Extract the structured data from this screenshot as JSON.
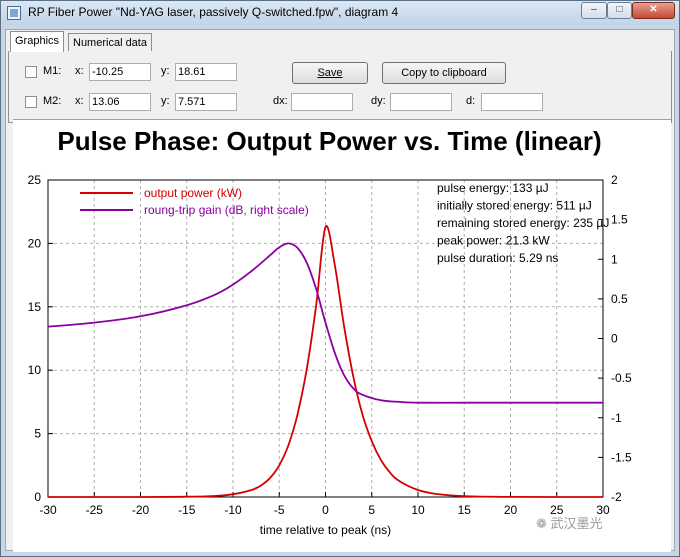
{
  "window": {
    "title": "RP Fiber Power \"Nd-YAG laser, passively Q-switched.fpw\", diagram 4",
    "min_label": "–",
    "max_label": "□",
    "close_label": "✕"
  },
  "tabs": [
    {
      "label": "Graphics",
      "active": true
    },
    {
      "label": "Numerical data",
      "active": false
    }
  ],
  "markers": {
    "m1": {
      "label": "M1:",
      "x_label": "x:",
      "x": "-10.25",
      "y_label": "y:",
      "y": "18.61"
    },
    "m2": {
      "label": "M2:",
      "x_label": "x:",
      "x": "13.06",
      "y_label": "y:",
      "y": "7.571"
    },
    "dx_label": "dx:",
    "dx": "",
    "dy_label": "dy:",
    "dy": "",
    "d_label": "d:",
    "d": ""
  },
  "buttons": {
    "save": "Save",
    "copy": "Copy to clipboard"
  },
  "chart_data": {
    "type": "line",
    "title": "Pulse Phase: Output Power vs. Time (linear)",
    "xlabel": "time relative to peak (ns)",
    "xlim": [
      -30,
      30
    ],
    "ylim": [
      0,
      25
    ],
    "y2lim": [
      -2,
      2
    ],
    "x_ticks": [
      "-30",
      "-25",
      "-20",
      "-15",
      "-10",
      "-5",
      "0",
      "5",
      "10",
      "15",
      "20",
      "25",
      "30"
    ],
    "y_ticks": [
      "0",
      "5",
      "10",
      "15",
      "20",
      "25"
    ],
    "y2_ticks": [
      "-2",
      "-1.5",
      "-1",
      "-0.5",
      "0",
      "0.5",
      "1",
      "1.5",
      "2"
    ],
    "grid": true,
    "legend_position": "top-left",
    "series": [
      {
        "name": "output power (kW)",
        "color": "#d40000",
        "axis": "left",
        "x": [
          -30,
          -20,
          -15,
          -12,
          -10,
          -8,
          -7,
          -6,
          -5,
          -4,
          -3,
          -2,
          -1,
          0,
          1,
          2,
          3,
          4,
          5,
          6,
          7,
          8,
          10,
          12,
          15,
          20,
          30
        ],
        "y": [
          0,
          0,
          0.02,
          0.08,
          0.22,
          0.55,
          0.9,
          1.5,
          2.5,
          4.1,
          6.6,
          10.2,
          15.2,
          21.3,
          18.3,
          13.5,
          9.5,
          6.5,
          4.4,
          2.9,
          1.9,
          1.25,
          0.55,
          0.24,
          0.07,
          0.01,
          0
        ]
      },
      {
        "name": "roung-trip gain (dB, right scale)",
        "color": "#8b00a0",
        "axis": "right",
        "x": [
          -30,
          -25,
          -20,
          -15,
          -12,
          -10,
          -8,
          -6,
          -5,
          -4,
          -3,
          -2,
          -1,
          0,
          1,
          2,
          3,
          4,
          6,
          8,
          10,
          15,
          20,
          30
        ],
        "y": [
          0.15,
          0.2,
          0.28,
          0.42,
          0.55,
          0.68,
          0.85,
          1.05,
          1.15,
          1.2,
          1.14,
          0.95,
          0.62,
          0.2,
          -0.18,
          -0.46,
          -0.63,
          -0.71,
          -0.78,
          -0.8,
          -0.81,
          -0.81,
          -0.81,
          -0.81
        ]
      }
    ],
    "annotations": [
      "pulse energy: 133 µJ",
      "initially stored energy: 511 µJ",
      "remaining stored energy: 235 µJ",
      "peak power: 21.3 kW",
      "pulse duration: 5.29 ns"
    ]
  },
  "watermark": "武汉墨光"
}
